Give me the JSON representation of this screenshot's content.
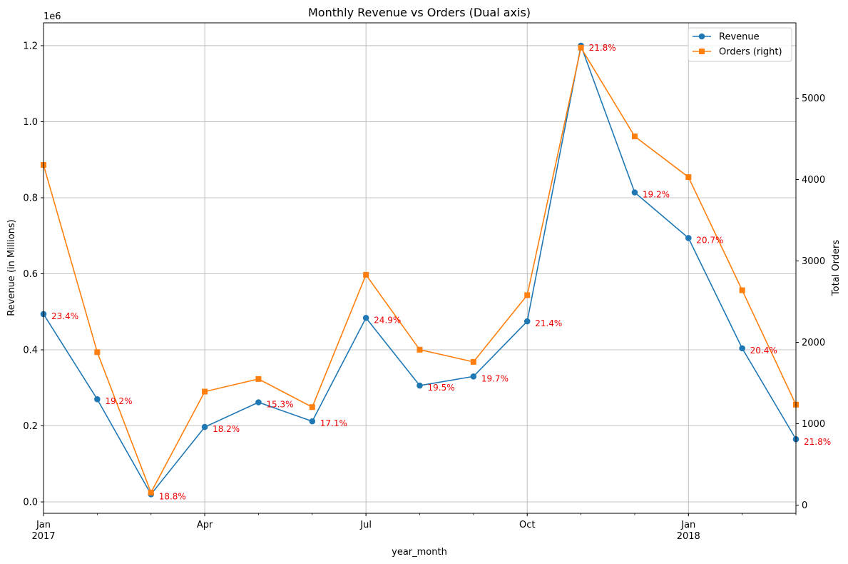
{
  "chart_data": {
    "type": "line",
    "title": "Monthly Revenue vs Orders (Dual axis)",
    "xlabel": "year_month",
    "ylabel": "Revenue (in Millions)",
    "y2label": "Total Orders",
    "y_offset_text": "1e6",
    "categories": [
      "2017-01",
      "2017-02",
      "2017-03",
      "2017-04",
      "2017-05",
      "2017-06",
      "2017-07",
      "2017-08",
      "2017-09",
      "2017-10",
      "2017-11",
      "2017-12",
      "2018-01",
      "2018-02",
      "2018-03"
    ],
    "x_ticks": [
      {
        "index": 0,
        "label": "Jan",
        "sublabel": "2017"
      },
      {
        "index": 3,
        "label": "Apr",
        "sublabel": ""
      },
      {
        "index": 6,
        "label": "Jul",
        "sublabel": ""
      },
      {
        "index": 9,
        "label": "Oct",
        "sublabel": ""
      },
      {
        "index": 12,
        "label": "Jan",
        "sublabel": "2018"
      }
    ],
    "ylim": [
      -0.03,
      1.26
    ],
    "y_ticks": [
      {
        "value": 0.0,
        "label": "0.0"
      },
      {
        "value": 0.2,
        "label": "0.2"
      },
      {
        "value": 0.4,
        "label": "0.4"
      },
      {
        "value": 0.6,
        "label": "0.6"
      },
      {
        "value": 0.8,
        "label": "0.8"
      },
      {
        "value": 1.0,
        "label": "1.0"
      },
      {
        "value": 1.2,
        "label": "1.2"
      }
    ],
    "y2lim": [
      -100,
      5925
    ],
    "y2_ticks": [
      {
        "value": 0,
        "label": "0"
      },
      {
        "value": 1000,
        "label": "1000"
      },
      {
        "value": 2000,
        "label": "2000"
      },
      {
        "value": 3000,
        "label": "3000"
      },
      {
        "value": 4000,
        "label": "4000"
      },
      {
        "value": 5000,
        "label": "5000"
      }
    ],
    "grid": true,
    "legend_position": "top-right",
    "series": [
      {
        "name": "Revenue",
        "axis": "left",
        "color": "#1f77b4",
        "marker": "circle",
        "values": [
          0.494,
          0.27,
          0.02,
          0.197,
          0.262,
          0.212,
          0.484,
          0.306,
          0.33,
          0.475,
          1.2,
          0.814,
          0.694,
          0.404,
          0.165
        ]
      },
      {
        "name": "Orders (right)",
        "axis": "right",
        "color": "#ff7f0e",
        "marker": "square",
        "values": [
          4180,
          1880,
          155,
          1395,
          1550,
          1205,
          2830,
          1910,
          1760,
          2580,
          5620,
          4530,
          4030,
          2640,
          1235
        ]
      }
    ],
    "annotations": [
      "23.4%",
      "19.2%",
      "18.8%",
      "18.2%",
      "15.3%",
      "17.1%",
      "24.9%",
      "19.5%",
      "19.7%",
      "21.4%",
      "21.8%",
      "19.2%",
      "20.7%",
      "20.4%",
      "21.8%"
    ],
    "annotation_color": "#ee0000"
  }
}
